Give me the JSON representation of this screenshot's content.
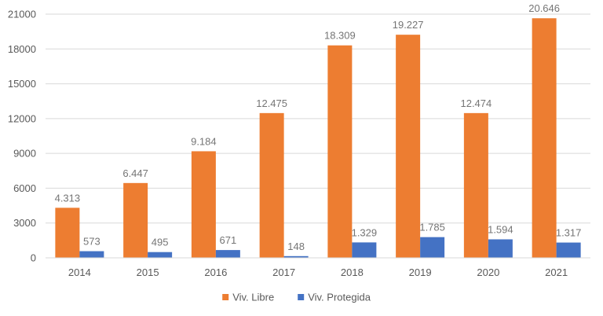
{
  "chart_data": {
    "type": "bar",
    "title": "",
    "xlabel": "",
    "ylabel": "",
    "categories": [
      "2014",
      "2015",
      "2016",
      "2017",
      "2018",
      "2019",
      "2020",
      "2021"
    ],
    "series": [
      {
        "name": "Viv. Libre",
        "color": "#ED7D31",
        "values": [
          4313,
          6447,
          9184,
          12475,
          18309,
          19227,
          12474,
          20646
        ],
        "labels": [
          "4.313",
          "6.447",
          "9.184",
          "12.475",
          "18.309",
          "19.227",
          "12.474",
          "20.646"
        ]
      },
      {
        "name": "Viv. Protegida",
        "color": "#4472C4",
        "values": [
          573,
          495,
          671,
          148,
          1329,
          1785,
          1594,
          1317
        ],
        "labels": [
          "573",
          "495",
          "671",
          "148",
          "1.329",
          "1.785",
          "1.594",
          "1.317"
        ]
      }
    ],
    "ylim": [
      0,
      21000
    ],
    "yticks": [
      0,
      3000,
      6000,
      9000,
      12000,
      15000,
      18000,
      21000
    ],
    "ytick_labels": [
      "0",
      "3000",
      "6000",
      "9000",
      "12000",
      "15000",
      "18000",
      "21000"
    ],
    "grid": true,
    "legend_position": "bottom"
  }
}
